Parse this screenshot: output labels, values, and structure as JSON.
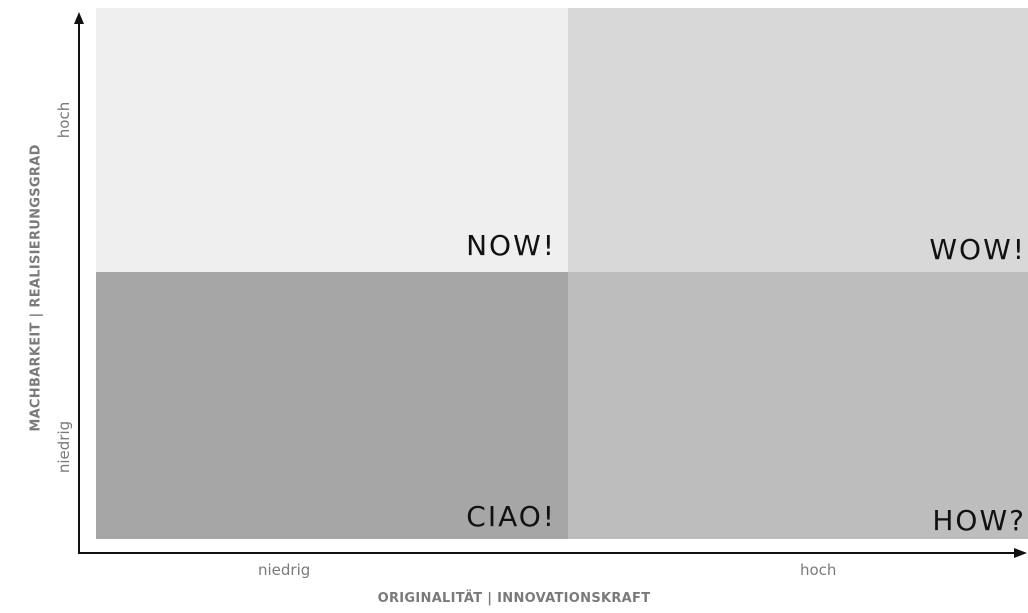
{
  "quadrants": {
    "top_left": "NOW!",
    "top_right": "WOW!",
    "bottom_left": "CIAO!",
    "bottom_right": "HOW?"
  },
  "x_axis": {
    "title": "ORIGINALITÄT | INNOVATIONSKRAFT",
    "low_label": "niedrig",
    "high_label": "hoch"
  },
  "y_axis": {
    "title": "MACHBARKEIT | REALISIERUNGSGRAD",
    "low_label": "niedrig",
    "high_label": "hoch"
  },
  "colors": {
    "top_left": "#efefef",
    "top_right": "#d8d8d8",
    "bottom_left": "#a6a6a6",
    "bottom_right": "#bdbdbd",
    "axis": "#111111",
    "axis_text": "#7a7a7a"
  }
}
